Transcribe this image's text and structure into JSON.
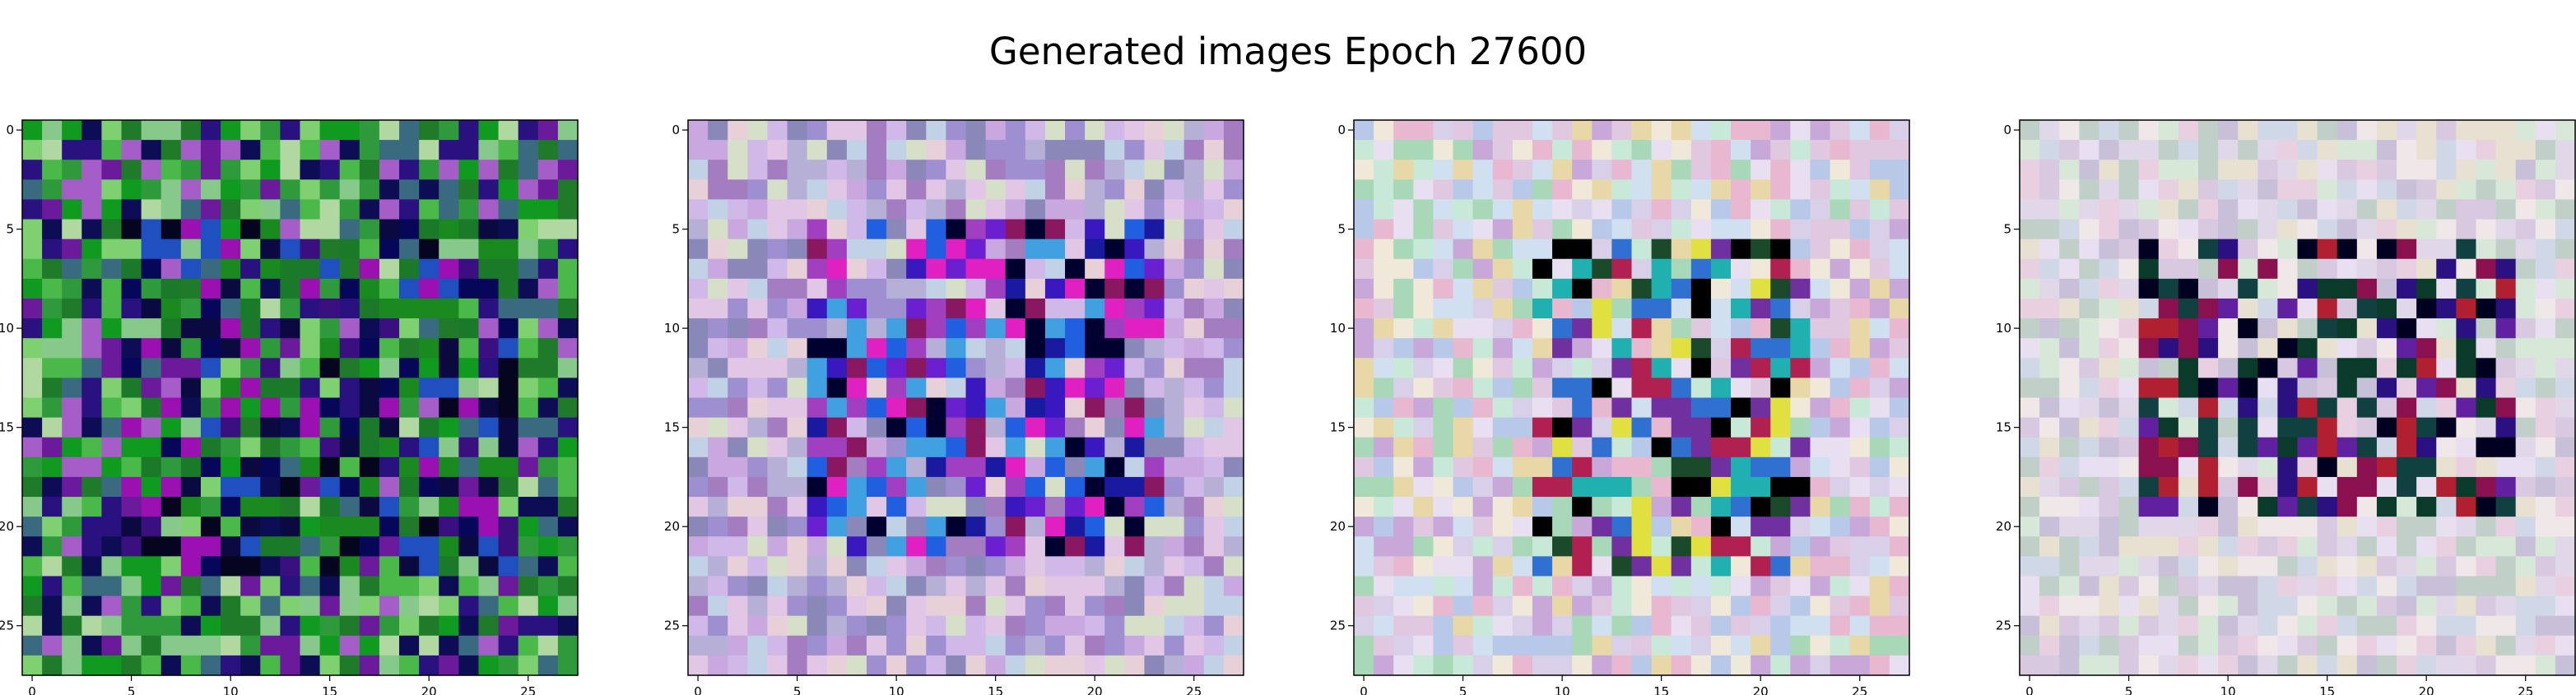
{
  "title": "Generated images Epoch 27600",
  "chart_data": [
    {
      "type": "heatmap",
      "title": "",
      "xlabel": "",
      "ylabel": "",
      "xlim": [
        -0.5,
        27.5
      ],
      "ylim": [
        27.5,
        -0.5
      ],
      "grid": false,
      "xticks": [
        0,
        5,
        10,
        15,
        20,
        25
      ],
      "yticks": [
        0,
        5,
        10,
        15,
        20,
        25
      ],
      "rows": 28,
      "cols": 28,
      "palette": [
        "#2f9a3c",
        "#4bb84a",
        "#86c98a",
        "#1f7a2a",
        "#0d0d55",
        "#2a1180",
        "#6a1a9a",
        "#a55ec8",
        "#109a20",
        "#7fd070",
        "#b0d8a0",
        "#3a6a80"
      ],
      "center_palette": [
        "#07075a",
        "#0a0a40",
        "#3a1080",
        "#1a8a20",
        "#9a10b0",
        "#2050c0",
        "#050520",
        "#1a7a2a"
      ],
      "center_region": [
        5,
        22,
        5,
        24
      ]
    },
    {
      "type": "heatmap",
      "title": "",
      "xlabel": "",
      "ylabel": "",
      "xlim": [
        -0.5,
        27.5
      ],
      "ylim": [
        27.5,
        -0.5
      ],
      "grid": false,
      "xticks": [
        0,
        5,
        10,
        15,
        20,
        25
      ],
      "yticks": [
        0,
        5,
        10,
        15,
        20,
        25
      ],
      "rows": 28,
      "cols": 28,
      "palette": [
        "#c9a8e0",
        "#b6b0d6",
        "#e1c6e6",
        "#9d8fd0",
        "#c2d2e6",
        "#d6e0c8",
        "#a47cc0",
        "#e8d0d8",
        "#8a88b8",
        "#d0b8e8"
      ],
      "center_palette": [
        "#3a18c0",
        "#6a20d0",
        "#1a1aa0",
        "#8a1860",
        "#e020c0",
        "#2060e0",
        "#000030",
        "#40a0e0",
        "#a040c0"
      ],
      "center_region": [
        5,
        21,
        6,
        23
      ]
    },
    {
      "type": "heatmap",
      "title": "",
      "xlabel": "",
      "ylabel": "",
      "xlim": [
        -0.5,
        27.5
      ],
      "ylim": [
        27.5,
        -0.5
      ],
      "grid": false,
      "xticks": [
        0,
        5,
        10,
        15,
        20,
        25
      ],
      "yticks": [
        0,
        5,
        10,
        15,
        20,
        25
      ],
      "rows": 28,
      "cols": 28,
      "palette": [
        "#d8d0e8",
        "#e8e0f0",
        "#c8e8d8",
        "#e0c8e0",
        "#f0e8d8",
        "#b8c8e8",
        "#a8d8b8",
        "#e8b8d0",
        "#d0e0f0",
        "#c8a8d8",
        "#e8d8a8"
      ],
      "center_palette": [
        "#000000",
        "#1a4a2a",
        "#b02050",
        "#20b0b0",
        "#7030a0",
        "#3070d0",
        "#e0e040"
      ],
      "center_region": [
        6,
        22,
        9,
        22
      ]
    },
    {
      "type": "heatmap",
      "title": "",
      "xlabel": "",
      "ylabel": "",
      "xlim": [
        -0.5,
        27.5
      ],
      "ylim": [
        27.5,
        -0.5
      ],
      "grid": false,
      "xticks": [
        0,
        5,
        10,
        15,
        20,
        25
      ],
      "yticks": [
        0,
        5,
        10,
        15,
        20,
        25
      ],
      "rows": 28,
      "cols": 28,
      "palette": [
        "#e0d8e8",
        "#e8e0f0",
        "#d0d8e8",
        "#e8d0e0",
        "#d8e8d8",
        "#c8c0d8",
        "#f0e8e8",
        "#d8c8e0",
        "#c0d0c8",
        "#e8e0d0"
      ],
      "center_palette": [
        "#000020",
        "#0a3a2a",
        "#8a1050",
        "#2a1080",
        "#b02030",
        "#6020a0",
        "#104040"
      ],
      "center_region": [
        6,
        19,
        6,
        24
      ]
    }
  ]
}
